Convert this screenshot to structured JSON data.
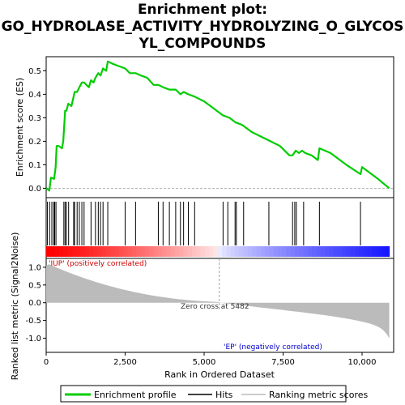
{
  "chart_data": {
    "type": "line",
    "title_line1": "Enrichment plot:",
    "title_line2": "GO_HYDROLASE_ACTIVITY_HYDROLYZING_O_GLYCOS",
    "title_line3": "YL_COMPOUNDS",
    "xlabel": "Rank in Ordered Dataset",
    "ylabel_top": "Enrichment score (ES)",
    "ylabel_bottom": "Ranked list metric (Signal2Noise)",
    "xlim": [
      0,
      11000
    ],
    "es_ylim": [
      -0.04,
      0.56
    ],
    "metric_ylim": [
      -1.4,
      1.25
    ],
    "x_ticks": [
      0,
      2500,
      5000,
      7500,
      10000
    ],
    "x_tick_labels": [
      "0",
      "2,500",
      "5,000",
      "7,500",
      "10,000"
    ],
    "es_ticks": [
      0.0,
      0.1,
      0.2,
      0.3,
      0.4,
      0.5
    ],
    "es_tick_labels": [
      "0.0",
      "0.1",
      "0.2",
      "0.3",
      "0.4",
      "0.5"
    ],
    "metric_ticks": [
      1.0,
      0.5,
      0.0,
      -0.5,
      -1.0
    ],
    "metric_tick_labels": [
      "1.0",
      "0.5",
      "0.0",
      "-0.5",
      "-1.0"
    ],
    "enrichment_profile": {
      "x": [
        0,
        100,
        150,
        250,
        300,
        330,
        400,
        500,
        540,
        560,
        600,
        640,
        700,
        800,
        870,
        900,
        980,
        1050,
        1130,
        1200,
        1350,
        1420,
        1500,
        1560,
        1650,
        1720,
        1800,
        1900,
        1950,
        2100,
        2300,
        2500,
        2650,
        2830,
        3000,
        3200,
        3400,
        3550,
        3700,
        3900,
        4100,
        4250,
        4350,
        4500,
        4700,
        5000,
        5200,
        5400,
        5600,
        5800,
        6000,
        6200,
        6500,
        6800,
        7100,
        7400,
        7700,
        7800,
        7900,
        8000,
        8100,
        8200,
        8400,
        8600,
        8650,
        9000,
        9500,
        9950,
        10000,
        10500,
        10860
      ],
      "y": [
        0.0,
        -0.01,
        0.045,
        0.04,
        0.09,
        0.18,
        0.18,
        0.17,
        0.2,
        0.24,
        0.33,
        0.33,
        0.36,
        0.35,
        0.39,
        0.41,
        0.41,
        0.43,
        0.45,
        0.45,
        0.43,
        0.46,
        0.45,
        0.47,
        0.49,
        0.48,
        0.51,
        0.5,
        0.54,
        0.53,
        0.52,
        0.51,
        0.49,
        0.49,
        0.48,
        0.47,
        0.44,
        0.44,
        0.43,
        0.42,
        0.42,
        0.4,
        0.41,
        0.4,
        0.39,
        0.37,
        0.35,
        0.33,
        0.31,
        0.3,
        0.28,
        0.27,
        0.24,
        0.22,
        0.2,
        0.18,
        0.14,
        0.14,
        0.16,
        0.15,
        0.16,
        0.15,
        0.14,
        0.12,
        0.17,
        0.15,
        0.1,
        0.06,
        0.09,
        0.04,
        0.0
      ]
    },
    "hits": [
      40,
      110,
      180,
      240,
      270,
      310,
      560,
      600,
      640,
      710,
      870,
      900,
      980,
      1050,
      1130,
      1200,
      1420,
      1560,
      1650,
      1720,
      1800,
      1950,
      2500,
      2830,
      3550,
      3700,
      3900,
      4100,
      4250,
      4350,
      4500,
      4700,
      5600,
      5750,
      5980,
      6020,
      6250,
      7050,
      7800,
      7870,
      7920,
      8150,
      8650,
      9950
    ],
    "zero_cross_label": "Zero cross at 5482",
    "zero_cross_x": 5482,
    "pos_label": "'IUP' (positively correlated)",
    "neg_label": "'EP' (negatively correlated)",
    "legend": [
      "Enrichment profile",
      "Hits",
      "Ranking metric scores"
    ],
    "colors": {
      "profile": "#00cc00",
      "hits": "#000000",
      "metric_fill": "#bbbbbb",
      "pos_label": "#cc0000",
      "neg_label": "#0000cc",
      "heat_pos": "#ff0000",
      "heat_neg": "#0000ff"
    }
  }
}
